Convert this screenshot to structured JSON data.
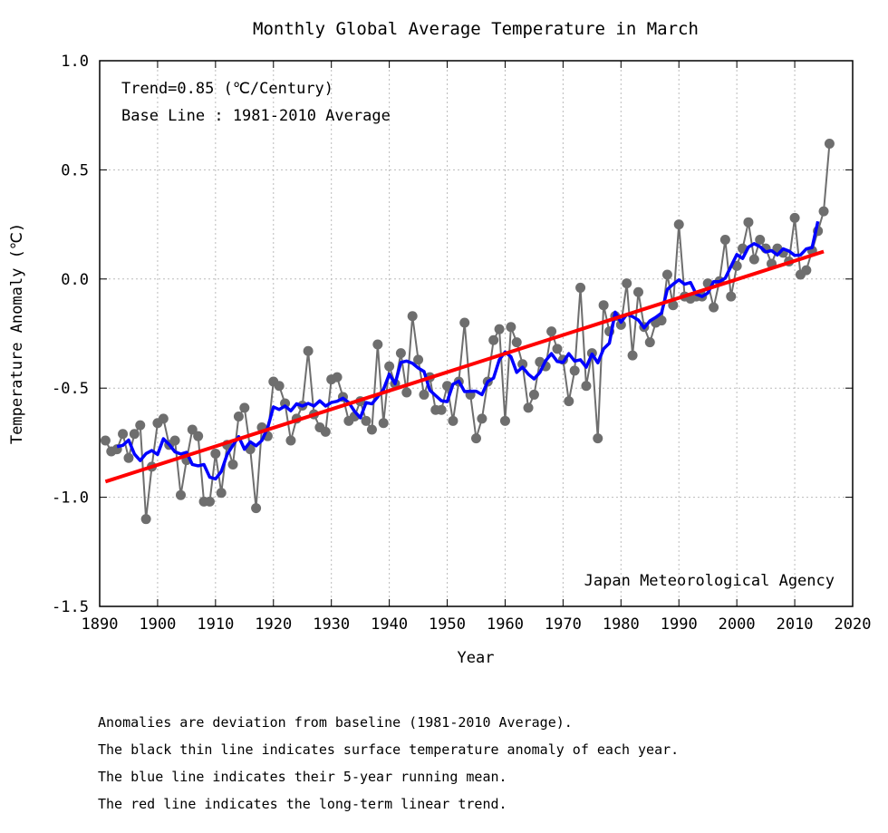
{
  "chart_data": {
    "type": "line",
    "title": "Monthly Global Average Temperature in March",
    "xlabel": "Year",
    "ylabel": "Temperature Anomaly (℃)",
    "xlim": [
      1890,
      2020
    ],
    "ylim": [
      -1.5,
      1.0
    ],
    "xticks": [
      "1890",
      "1900",
      "1910",
      "1920",
      "1930",
      "1940",
      "1950",
      "1960",
      "1970",
      "1980",
      "1990",
      "2000",
      "2010",
      "2020"
    ],
    "yticks": [
      "1.0",
      "0.5",
      "0.0",
      "-0.5",
      "-1.0",
      "-1.5"
    ],
    "grid": true,
    "annotations": {
      "trend": "Trend=0.85 (℃/Century)",
      "baseline": "Base Line : 1981-2010 Average",
      "source": "Japan Meteorological Agency"
    },
    "series": [
      {
        "role": "annual anomaly",
        "color": "#6e6e6e",
        "x": [
          1891,
          1892,
          1893,
          1894,
          1895,
          1896,
          1897,
          1898,
          1899,
          1900,
          1901,
          1902,
          1903,
          1904,
          1905,
          1906,
          1907,
          1908,
          1909,
          1910,
          1911,
          1912,
          1913,
          1914,
          1915,
          1916,
          1917,
          1918,
          1919,
          1920,
          1921,
          1922,
          1923,
          1924,
          1925,
          1926,
          1927,
          1928,
          1929,
          1930,
          1931,
          1932,
          1933,
          1934,
          1935,
          1936,
          1937,
          1938,
          1939,
          1940,
          1941,
          1942,
          1943,
          1944,
          1945,
          1946,
          1947,
          1948,
          1949,
          1950,
          1951,
          1952,
          1953,
          1954,
          1955,
          1956,
          1957,
          1958,
          1959,
          1960,
          1961,
          1962,
          1963,
          1964,
          1965,
          1966,
          1967,
          1968,
          1969,
          1970,
          1971,
          1972,
          1973,
          1974,
          1975,
          1976,
          1977,
          1978,
          1979,
          1980,
          1981,
          1982,
          1983,
          1984,
          1985,
          1986,
          1987,
          1988,
          1989,
          1990,
          1991,
          1992,
          1993,
          1994,
          1995,
          1996,
          1997,
          1998,
          1999,
          2000,
          2001,
          2002,
          2003,
          2004,
          2005,
          2006,
          2007,
          2008,
          2009,
          2010,
          2011,
          2012,
          2013,
          2014,
          2015,
          2016
        ],
        "y": [
          -0.74,
          -0.79,
          -0.78,
          -0.71,
          -0.82,
          -0.71,
          -0.67,
          -1.1,
          -0.86,
          -0.66,
          -0.64,
          -0.76,
          -0.74,
          -0.99,
          -0.83,
          -0.69,
          -0.72,
          -1.02,
          -1.02,
          -0.8,
          -0.98,
          -0.76,
          -0.85,
          -0.63,
          -0.59,
          -0.78,
          -1.05,
          -0.68,
          -0.72,
          -0.47,
          -0.49,
          -0.57,
          -0.74,
          -0.64,
          -0.58,
          -0.33,
          -0.62,
          -0.68,
          -0.7,
          -0.46,
          -0.45,
          -0.54,
          -0.65,
          -0.63,
          -0.56,
          -0.65,
          -0.69,
          -0.3,
          -0.66,
          -0.4,
          -0.48,
          -0.34,
          -0.52,
          -0.17,
          -0.37,
          -0.53,
          -0.45,
          -0.6,
          -0.6,
          -0.49,
          -0.65,
          -0.47,
          -0.2,
          -0.53,
          -0.73,
          -0.64,
          -0.47,
          -0.28,
          -0.23,
          -0.65,
          -0.22,
          -0.29,
          -0.39,
          -0.59,
          -0.53,
          -0.38,
          -0.4,
          -0.24,
          -0.32,
          -0.37,
          -0.56,
          -0.42,
          -0.04,
          -0.49,
          -0.34,
          -0.73,
          -0.12,
          -0.24,
          -0.17,
          -0.21,
          -0.02,
          -0.35,
          -0.06,
          -0.22,
          -0.29,
          -0.2,
          -0.19,
          0.02,
          -0.12,
          0.25,
          -0.08,
          -0.09,
          -0.08,
          -0.08,
          -0.02,
          -0.13,
          -0.01,
          0.18,
          -0.08,
          0.06,
          0.14,
          0.26,
          0.09,
          0.18,
          0.14,
          0.07,
          0.14,
          0.12,
          0.08,
          0.28,
          0.02,
          0.04,
          0.13,
          0.22,
          0.31,
          0.62
        ]
      },
      {
        "role": "5-year running mean",
        "color": "#0000ff"
      },
      {
        "role": "long-term linear trend",
        "color": "#ff0000",
        "slope_per_century": 0.85
      }
    ]
  },
  "notes": [
    "Anomalies are deviation from baseline (1981-2010 Average).",
    "The black thin line indicates surface temperature anomaly of each year.",
    "The blue line indicates their 5-year running mean.",
    "The red line indicates the long-term linear trend."
  ]
}
